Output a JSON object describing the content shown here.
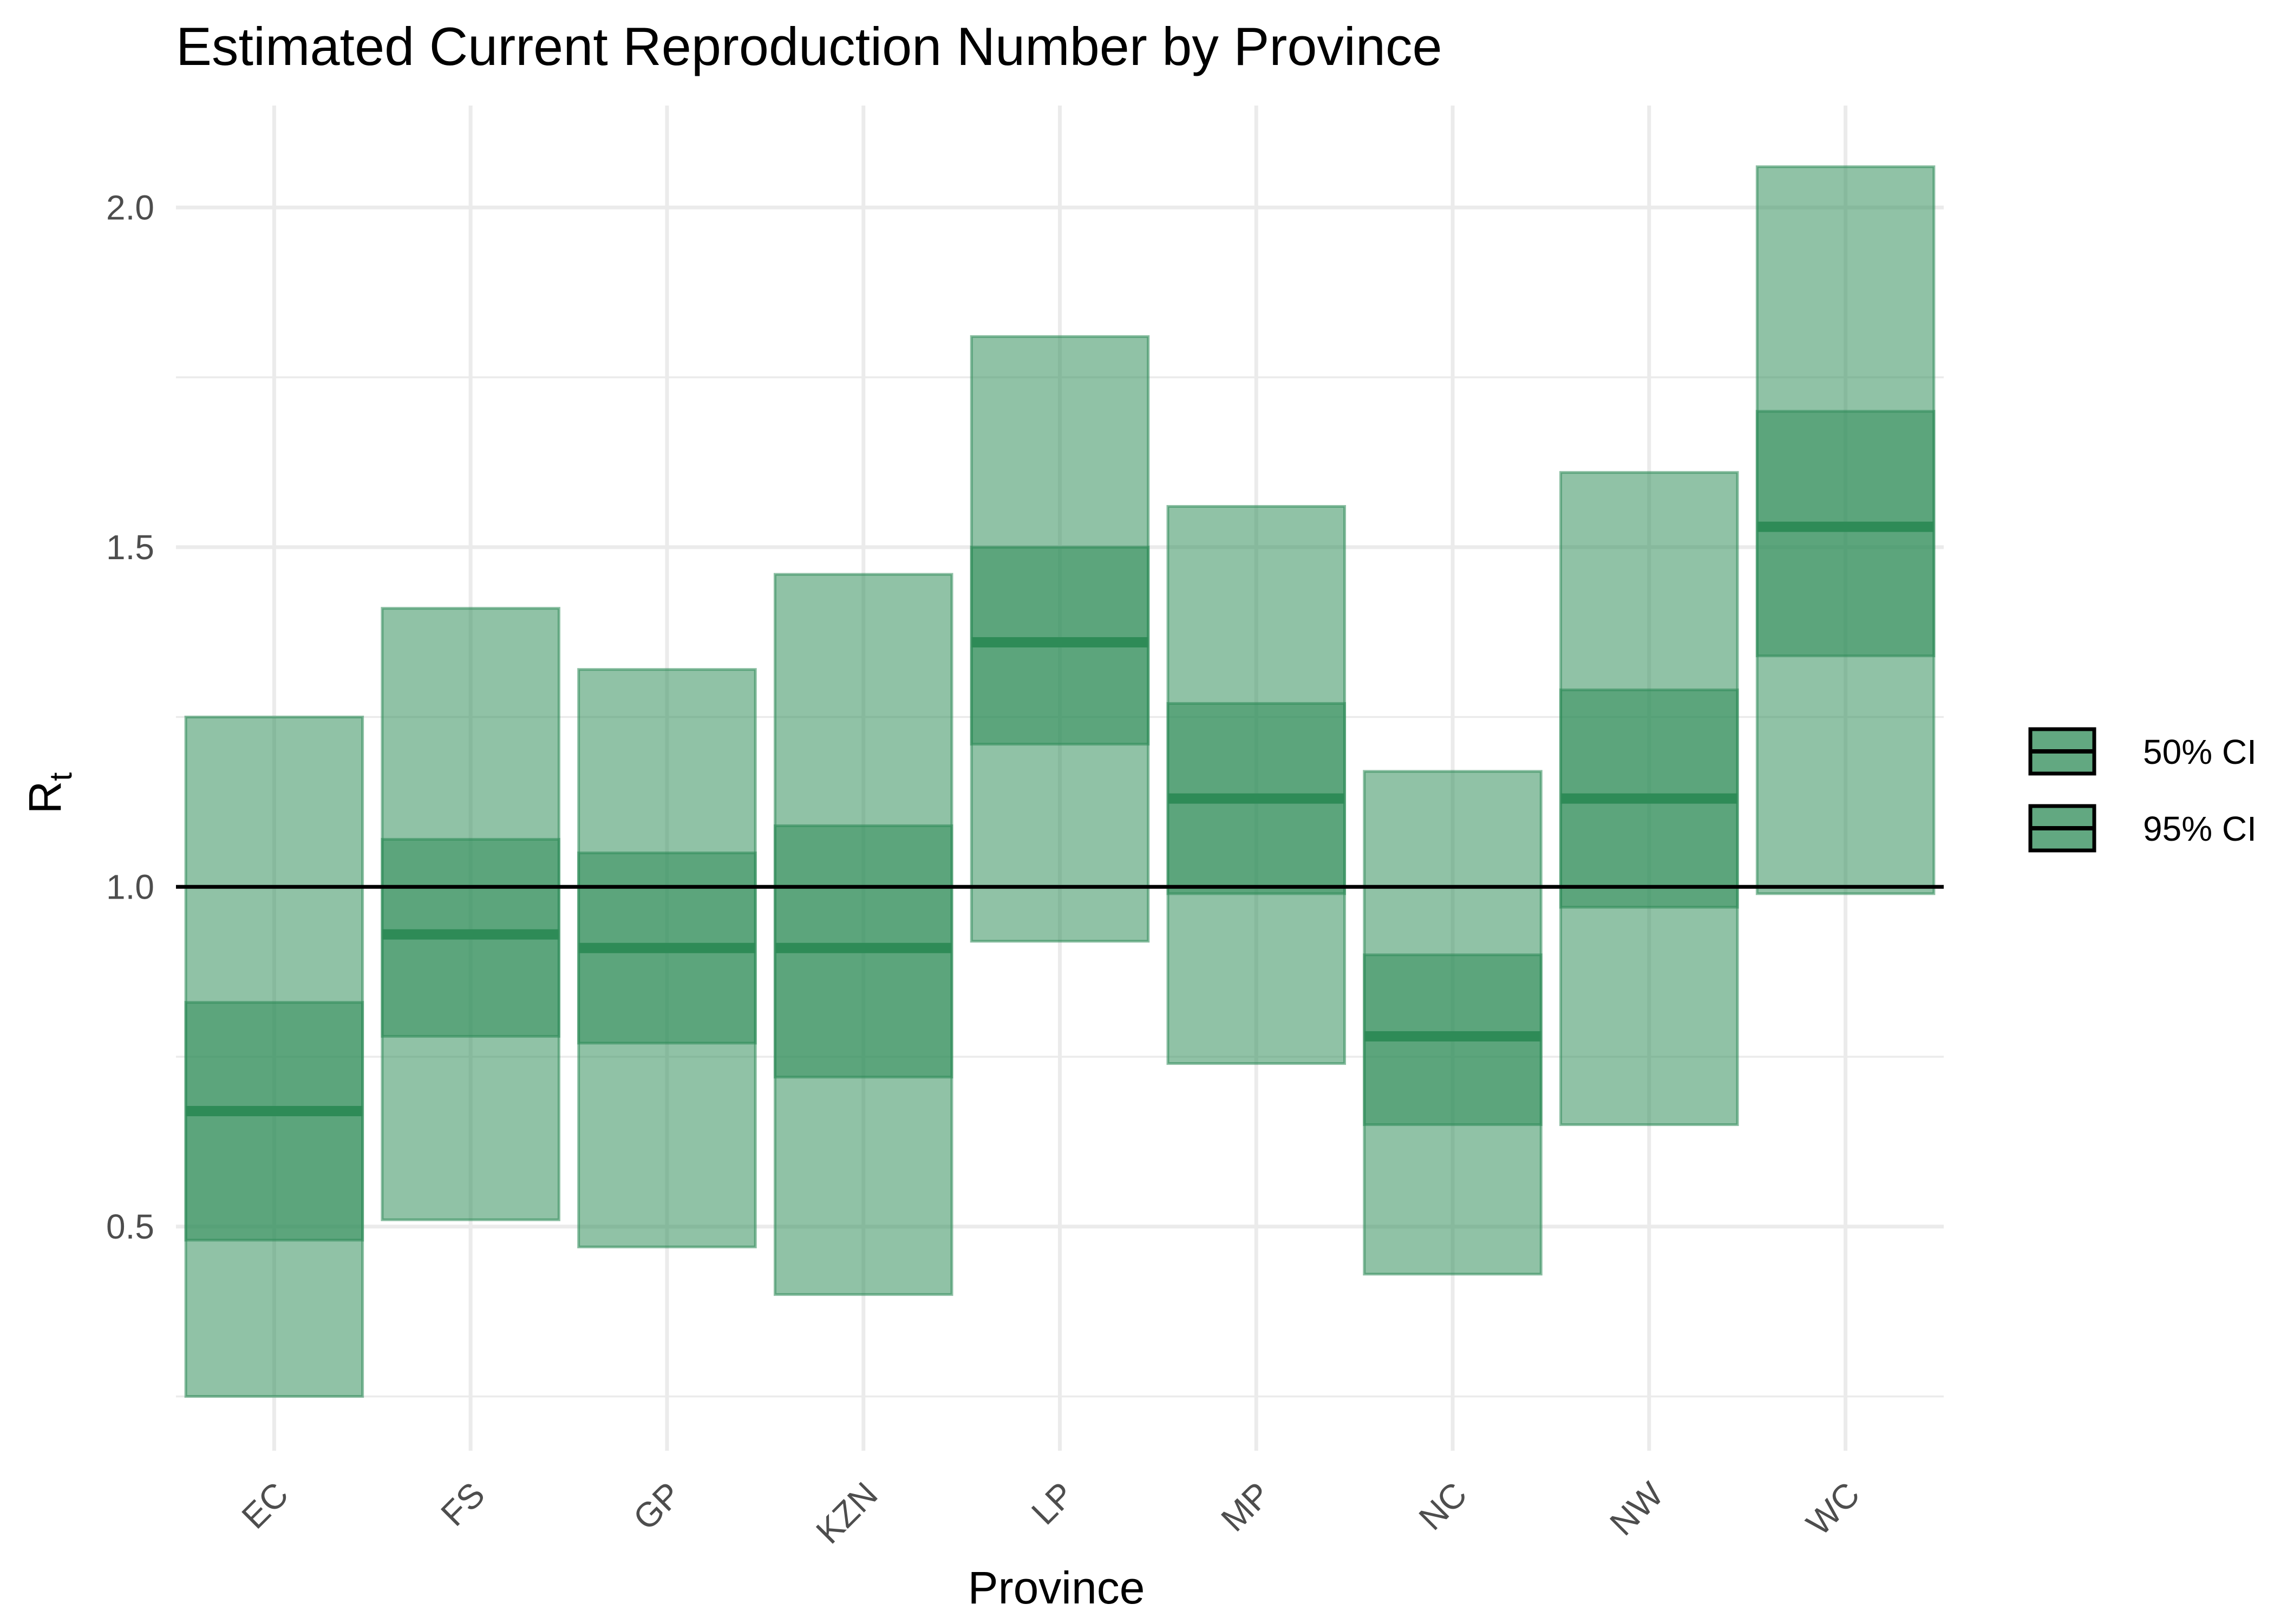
{
  "chart_data": {
    "type": "bar",
    "title": "Estimated Current Reproduction Number by Province",
    "xlabel": "Province",
    "ylabel": "R",
    "ylabel_subscript": "t",
    "categories": [
      "EC",
      "FS",
      "GP",
      "KZN",
      "LP",
      "MP",
      "NC",
      "NW",
      "WC"
    ],
    "series": [
      {
        "name": "95% CI",
        "lower": [
          0.25,
          0.51,
          0.47,
          0.4,
          0.92,
          0.74,
          0.43,
          0.65,
          0.99
        ],
        "upper": [
          1.25,
          1.41,
          1.32,
          1.46,
          1.81,
          1.56,
          1.17,
          1.61,
          2.06
        ]
      },
      {
        "name": "50% CI",
        "lower": [
          0.48,
          0.78,
          0.77,
          0.72,
          1.21,
          0.99,
          0.65,
          0.97,
          1.34
        ],
        "upper": [
          0.83,
          1.07,
          1.05,
          1.09,
          1.5,
          1.27,
          0.9,
          1.29,
          1.7
        ]
      }
    ],
    "median": [
      0.67,
      0.93,
      0.91,
      0.91,
      1.36,
      1.13,
      0.78,
      1.13,
      1.53
    ],
    "reference_line": 1.0,
    "yticks": [
      0.5,
      1.0,
      1.5,
      2.0
    ],
    "ytick_labels": [
      "0.5",
      "1.0",
      "1.5",
      "2.0"
    ],
    "ylim": [
      0.17,
      2.15
    ],
    "grid": true,
    "legend": {
      "placement": "right",
      "entries": [
        "50% CI",
        "95% CI"
      ]
    },
    "colors": {
      "fill": "#2e8b57",
      "ribbon_95_opacity": 0.53,
      "ribbon_50_opacity": 0.53,
      "median": "#2e8b57"
    }
  }
}
